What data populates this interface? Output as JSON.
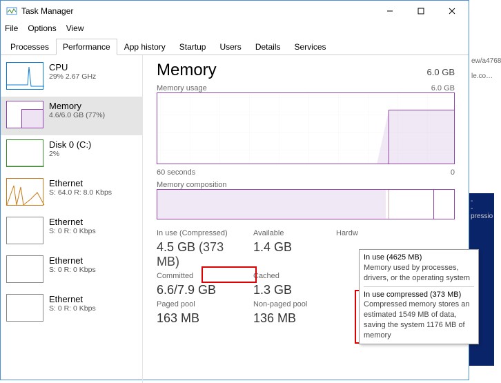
{
  "window": {
    "title": "Task Manager"
  },
  "menu": {
    "file": "File",
    "options": "Options",
    "view": "View"
  },
  "tabs": [
    "Processes",
    "Performance",
    "App history",
    "Startup",
    "Users",
    "Details",
    "Services"
  ],
  "active_tab": 1,
  "sidebar": [
    {
      "name": "CPU",
      "sub": "29%  2.67 GHz",
      "color": "#0a7dd6",
      "selected": false
    },
    {
      "name": "Memory",
      "sub": "4.6/6.0 GB (77%)",
      "color": "#8e44ad",
      "selected": true
    },
    {
      "name": "Disk 0 (C:)",
      "sub": "2%",
      "color": "#3a8a2e",
      "selected": false
    },
    {
      "name": "Ethernet",
      "sub": "S: 64.0  R: 8.0 Kbps",
      "color": "#c97a18",
      "selected": false
    },
    {
      "name": "Ethernet",
      "sub": "S: 0  R: 0 Kbps",
      "color": "#888",
      "selected": false
    },
    {
      "name": "Ethernet",
      "sub": "S: 0  R: 0 Kbps",
      "color": "#888",
      "selected": false
    },
    {
      "name": "Ethernet",
      "sub": "S: 0  R: 0 Kbps",
      "color": "#888",
      "selected": false
    }
  ],
  "main": {
    "heading": "Memory",
    "capacity": "6.0 GB",
    "usage_label": "Memory usage",
    "usage_max": "6.0 GB",
    "xaxis_left": "60 seconds",
    "xaxis_right": "0",
    "comp_label": "Memory composition",
    "accent": "#8e44ad"
  },
  "stats": {
    "in_use_lbl": "In use (Compressed)",
    "in_use_val": "4.5 GB",
    "in_use_comp": "(373 MB)",
    "avail_lbl": "Available",
    "avail_val": "1.4 GB",
    "hw_lbl": "Hardw",
    "commit_lbl": "Committed",
    "commit_val": "6.6/7.9 GB",
    "cached_lbl": "Cached",
    "cached_val": "1.3 GB",
    "paged_lbl": "Paged pool",
    "paged_val": "163 MB",
    "nonpaged_lbl": "Non-paged pool",
    "nonpaged_val": "136 MB"
  },
  "tooltip": {
    "t1_title": "In use (4625 MB)",
    "t1_body": "Memory used by processes, drivers, or the operating system",
    "t2_title": "In use compressed (373 MB)",
    "t2_body": "Compressed memory stores an estimated 1549 MB of data, saving the system 1176 MB of memory"
  },
  "background": {
    "url_frag": "ew/a4768",
    "tab_frag": "le.co…",
    "blue_frag": "pressio"
  }
}
